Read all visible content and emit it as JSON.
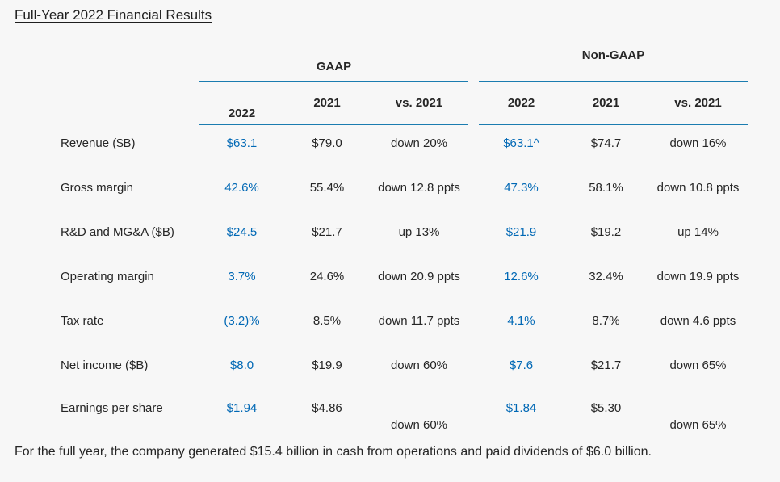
{
  "page": {
    "title": "Full-Year 2022 Financial Results",
    "footer": "For the full year, the company generated $15.4 billion in cash from operations and paid dividends of $6.0 billion."
  },
  "colors": {
    "background": "#f7f7f7",
    "accent_value_blue": "#0068b5",
    "rule_blue": "#1b7cb0",
    "text": "#262626"
  },
  "table": {
    "groups": [
      {
        "label": "GAAP"
      },
      {
        "label": "Non-GAAP"
      }
    ],
    "columns": [
      "2022",
      "2021",
      "vs. 2021",
      "2022",
      "2021",
      "vs. 2021"
    ],
    "rows": [
      {
        "label": "Revenue ($B)",
        "gaap": {
          "y2022": "$63.1",
          "y2021": "$79.0",
          "vs": "down 20%"
        },
        "non_gaap": {
          "y2022": "$63.1^",
          "y2021": "$74.7",
          "vs": "down 16%"
        }
      },
      {
        "label": "Gross margin",
        "gaap": {
          "y2022": "42.6%",
          "y2021": "55.4%",
          "vs": "down 12.8 ppts"
        },
        "non_gaap": {
          "y2022": "47.3%",
          "y2021": "58.1%",
          "vs": "down 10.8 ppts"
        }
      },
      {
        "label": "R&D and MG&A ($B)",
        "gaap": {
          "y2022": "$24.5",
          "y2021": "$21.7",
          "vs": "up 13%"
        },
        "non_gaap": {
          "y2022": "$21.9",
          "y2021": "$19.2",
          "vs": "up 14%"
        }
      },
      {
        "label": "Operating margin",
        "gaap": {
          "y2022": "3.7%",
          "y2021": "24.6%",
          "vs": "down 20.9 ppts"
        },
        "non_gaap": {
          "y2022": "12.6%",
          "y2021": "32.4%",
          "vs": "down 19.9 ppts"
        }
      },
      {
        "label": "Tax rate",
        "gaap": {
          "y2022": "(3.2)%",
          "y2021": "8.5%",
          "vs": "down 11.7 ppts"
        },
        "non_gaap": {
          "y2022": "4.1%",
          "y2021": "8.7%",
          "vs": "down 4.6 ppts"
        }
      },
      {
        "label": "Net income ($B)",
        "gaap": {
          "y2022": "$8.0",
          "y2021": "$19.9",
          "vs": "down 60%"
        },
        "non_gaap": {
          "y2022": "$7.6",
          "y2021": "$21.7",
          "vs": "down 65%"
        }
      },
      {
        "label": "Earnings per share",
        "gaap": {
          "y2022": "$1.94",
          "y2021": "$4.86",
          "vs": "down 60%"
        },
        "non_gaap": {
          "y2022": "$1.84",
          "y2021": "$5.30",
          "vs": "down 65%"
        }
      }
    ]
  }
}
